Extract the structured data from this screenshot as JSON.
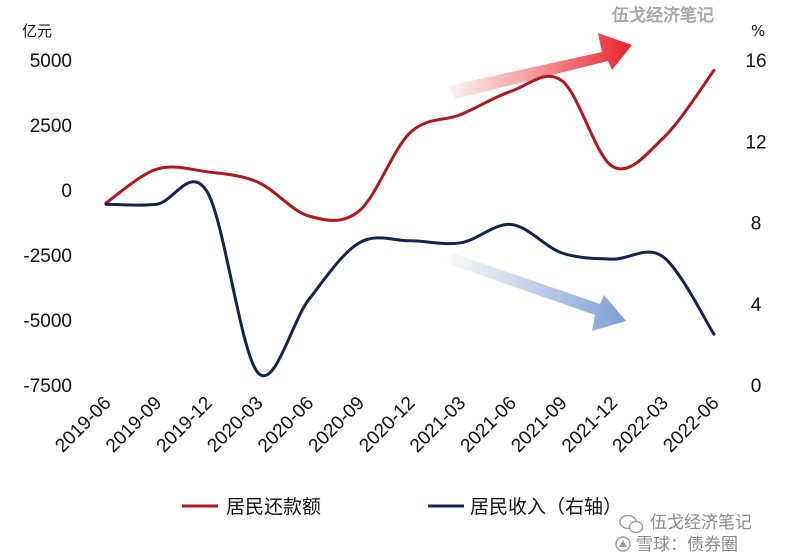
{
  "chart_data": {
    "type": "line",
    "title": "",
    "categories": [
      "2019-06",
      "2019-09",
      "2019-12",
      "2020-03",
      "2020-06",
      "2020-09",
      "2020-12",
      "2021-03",
      "2021-06",
      "2021-09",
      "2021-12",
      "2022-03",
      "2022-06"
    ],
    "left_axis": {
      "unit": "亿元",
      "ylim": [
        -7500,
        5000
      ],
      "ticks": [
        5000,
        2500,
        0,
        -2500,
        -5000,
        -7500
      ]
    },
    "right_axis": {
      "unit": "%",
      "ylim": [
        0,
        16
      ],
      "ticks": [
        16,
        12,
        8,
        4,
        0
      ]
    },
    "series": [
      {
        "name": "居民还款额",
        "axis": "left",
        "color": "#b0181e",
        "values": [
          -500,
          800,
          700,
          300,
          -1000,
          -800,
          2200,
          2900,
          3800,
          4200,
          900,
          2000,
          4600
        ]
      },
      {
        "name": "居民收入（右轴）",
        "axis": "right",
        "color": "#14244e",
        "values": [
          8.9,
          8.9,
          9.5,
          0.6,
          4.2,
          7.0,
          7.1,
          7.0,
          7.9,
          6.5,
          6.2,
          6.3,
          2.5
        ]
      }
    ],
    "legend_position": "bottom",
    "grid": false,
    "annotations": [
      {
        "type": "arrow",
        "direction": "up",
        "color": "#e8232a"
      },
      {
        "type": "arrow",
        "direction": "down",
        "color": "#7f9ed3"
      }
    ]
  },
  "watermarks": {
    "top": "伍戈经济笔记",
    "bottom_wechat": "伍戈经济笔记",
    "bottom_xueqiu": "雪球：债券圈"
  }
}
